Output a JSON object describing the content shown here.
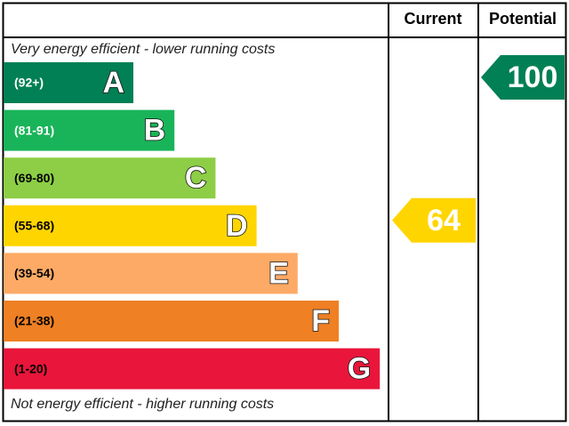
{
  "chart_data": {
    "type": "epc",
    "header": {
      "current": "Current",
      "potential": "Potential"
    },
    "top_note": "Very energy efficient - lower running costs",
    "bottom_note": "Not energy efficient - higher running costs",
    "bands": [
      {
        "range": "(92+)",
        "letter": "A",
        "color": "#008054",
        "text_color": "#ffffff"
      },
      {
        "range": "(81-91)",
        "letter": "B",
        "color": "#19b459",
        "text_color": "#ffffff"
      },
      {
        "range": "(69-80)",
        "letter": "C",
        "color": "#8dce46",
        "text_color": "#000000"
      },
      {
        "range": "(55-68)",
        "letter": "D",
        "color": "#ffd500",
        "text_color": "#000000"
      },
      {
        "range": "(39-54)",
        "letter": "E",
        "color": "#fcaa65",
        "text_color": "#000000"
      },
      {
        "range": "(21-38)",
        "letter": "F",
        "color": "#ef8023",
        "text_color": "#000000"
      },
      {
        "range": "(1-20)",
        "letter": "G",
        "color": "#e9153b",
        "text_color": "#000000"
      }
    ],
    "current": 64,
    "potential": 100
  }
}
